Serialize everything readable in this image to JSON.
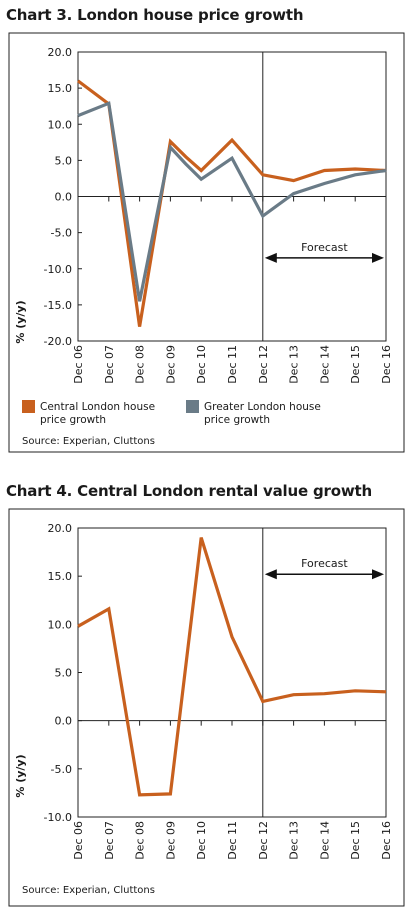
{
  "chart_data": [
    {
      "type": "line",
      "title": "Chart 3. London house price growth",
      "ylabel": "% (y/y)",
      "xlabel": "",
      "categories": [
        "Dec 06",
        "Dec 07",
        "Dec 08",
        "Dec 09",
        "Dec 10",
        "Dec 11",
        "Dec 12",
        "Dec 13",
        "Dec 14",
        "Dec 15",
        "Dec 16"
      ],
      "yticks": [
        "20.0",
        "15.0",
        "10.0",
        "5.0",
        "0.0",
        "-5.0",
        "-10.0",
        "-15.0",
        "-20.0"
      ],
      "ylim": [
        -20,
        20
      ],
      "x_points": [
        0,
        1,
        2,
        3,
        4,
        5,
        6,
        7,
        8,
        9,
        10
      ],
      "series": [
        {
          "name": "Central London house price growth",
          "legend_lines": [
            "Central London house",
            "price growth"
          ],
          "color": "#c8601e",
          "x": [
            0,
            1,
            2,
            3,
            3.5,
            4,
            5,
            6,
            7,
            8,
            9,
            10
          ],
          "values": [
            16.0,
            12.8,
            -18.0,
            7.6,
            5.5,
            3.6,
            7.8,
            3.0,
            2.2,
            3.6,
            3.8,
            3.6
          ]
        },
        {
          "name": "Greater London house price growth",
          "legend_lines": [
            "Greater London house",
            "price growth"
          ],
          "color": "#6a7b87",
          "x": [
            0,
            1,
            2,
            3,
            3.5,
            4,
            5,
            6,
            7,
            8,
            9,
            10
          ],
          "values": [
            11.2,
            12.9,
            -14.5,
            6.8,
            4.5,
            2.4,
            5.3,
            -2.7,
            0.4,
            1.8,
            3.0,
            3.6
          ]
        }
      ],
      "forecast": {
        "label": "Forecast",
        "from": 6,
        "to": 10,
        "level": -8.5
      },
      "grid": false,
      "legend": "bottom",
      "source": "Source: Experian, Cluttons"
    },
    {
      "type": "line",
      "title": "Chart 4. Central London rental value growth",
      "ylabel": "% (y/y)",
      "xlabel": "",
      "categories": [
        "Dec 06",
        "Dec 07",
        "Dec 08",
        "Dec 09",
        "Dec 10",
        "Dec 11",
        "Dec 12",
        "Dec 13",
        "Dec 14",
        "Dec 15",
        "Dec 16"
      ],
      "yticks": [
        "20.0",
        "15.0",
        "10.0",
        "5.0",
        "0.0",
        "-5.0",
        "-10.0"
      ],
      "ylim": [
        -10,
        20
      ],
      "series": [
        {
          "color": "#c8601e",
          "x": [
            0,
            1,
            2,
            3,
            4,
            5,
            6,
            7,
            8,
            9,
            10
          ],
          "values": [
            9.8,
            11.6,
            -7.7,
            -7.6,
            19.0,
            8.7,
            2.0,
            2.7,
            2.8,
            3.1,
            3.0
          ]
        }
      ],
      "forecast": {
        "label": "Forecast",
        "from": 6,
        "to": 10,
        "level": 15.2
      },
      "grid": false,
      "legend": "none",
      "source": "Source: Experian, Cluttons"
    }
  ]
}
